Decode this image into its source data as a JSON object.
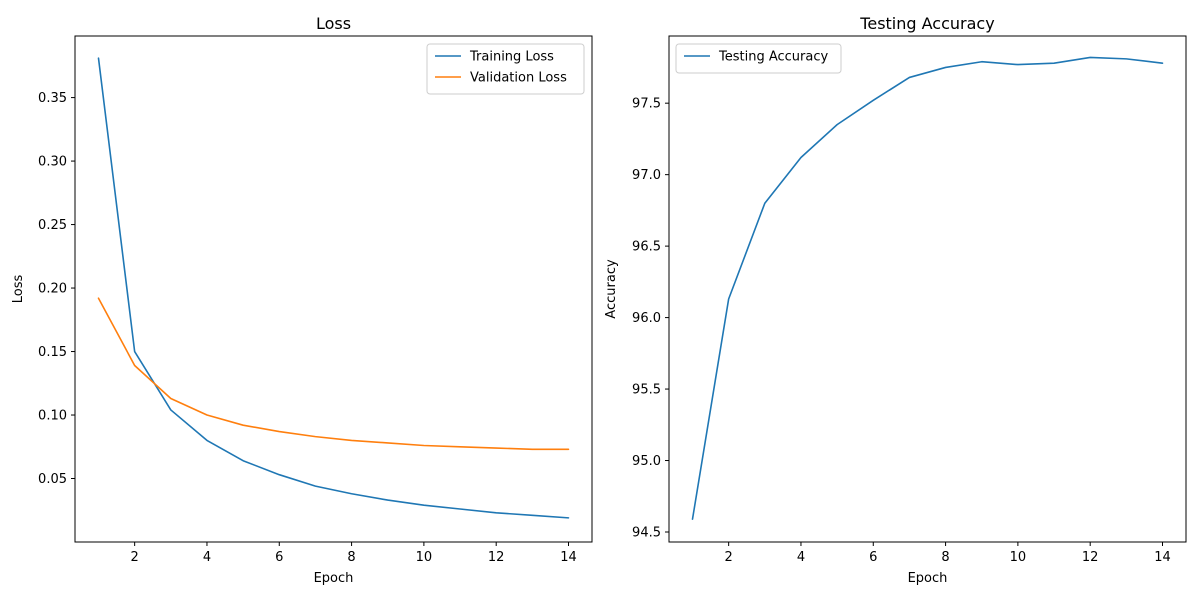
{
  "chart_data": [
    {
      "type": "line",
      "title": "Loss",
      "xlabel": "Epoch",
      "ylabel": "Loss",
      "xlim": [
        0.35,
        14.65
      ],
      "ylim": [
        0.0,
        0.3985
      ],
      "xticks": [
        2,
        4,
        6,
        8,
        10,
        12,
        14
      ],
      "yticks": [
        0.05,
        0.1,
        0.15,
        0.2,
        0.25,
        0.3,
        0.35
      ],
      "ytick_labels": [
        "0.05",
        "0.10",
        "0.15",
        "0.20",
        "0.25",
        "0.30",
        "0.35"
      ],
      "legend_position": "top-right",
      "grid": false,
      "x": [
        1,
        2,
        3,
        4,
        5,
        6,
        7,
        8,
        9,
        10,
        11,
        12,
        13,
        14
      ],
      "series": [
        {
          "name": "Training Loss",
          "color": "#1f77b4",
          "values": [
            0.381,
            0.15,
            0.104,
            0.08,
            0.064,
            0.053,
            0.044,
            0.038,
            0.033,
            0.029,
            0.026,
            0.023,
            0.021,
            0.019
          ]
        },
        {
          "name": "Validation Loss",
          "color": "#ff7f0e",
          "values": [
            0.192,
            0.139,
            0.113,
            0.1,
            0.092,
            0.087,
            0.083,
            0.08,
            0.078,
            0.076,
            0.075,
            0.074,
            0.073,
            0.073
          ]
        }
      ]
    },
    {
      "type": "line",
      "title": "Testing Accuracy",
      "xlabel": "Epoch",
      "ylabel": "Accuracy",
      "xlim": [
        0.35,
        14.65
      ],
      "ylim": [
        94.43,
        97.97
      ],
      "xticks": [
        2,
        4,
        6,
        8,
        10,
        12,
        14
      ],
      "yticks": [
        94.5,
        95.0,
        95.5,
        96.0,
        96.5,
        97.0,
        97.5
      ],
      "ytick_labels": [
        "94.5",
        "95.0",
        "95.5",
        "96.0",
        "96.5",
        "97.0",
        "97.5"
      ],
      "legend_position": "top-left",
      "grid": false,
      "x": [
        1,
        2,
        3,
        4,
        5,
        6,
        7,
        8,
        9,
        10,
        11,
        12,
        13,
        14
      ],
      "series": [
        {
          "name": "Testing Accuracy",
          "color": "#1f77b4",
          "values": [
            94.59,
            96.13,
            96.8,
            97.12,
            97.35,
            97.52,
            97.68,
            97.75,
            97.79,
            97.77,
            97.78,
            97.82,
            97.81,
            97.78
          ]
        }
      ]
    }
  ]
}
